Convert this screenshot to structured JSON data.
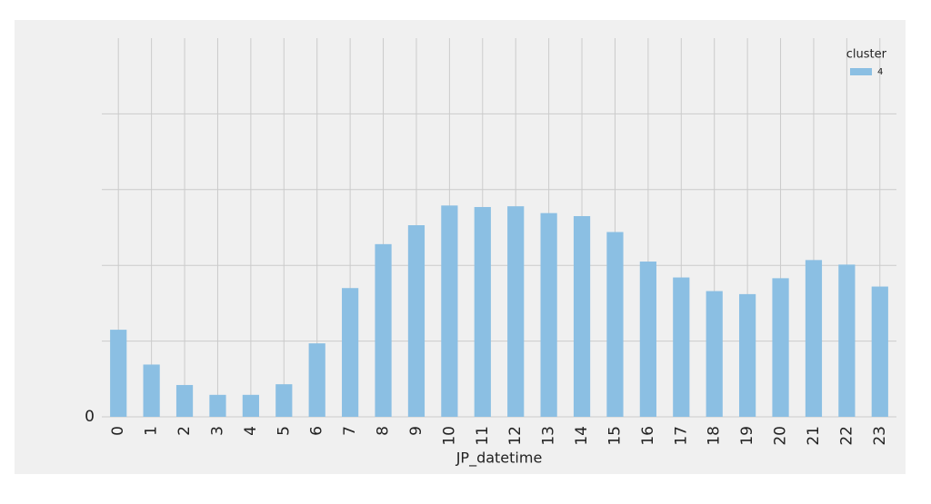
{
  "chart_data": {
    "type": "bar",
    "x_label": "JP_datetime",
    "categories": [
      "0",
      "1",
      "2",
      "3",
      "4",
      "5",
      "6",
      "7",
      "8",
      "9",
      "10",
      "11",
      "12",
      "13",
      "14",
      "15",
      "16",
      "17",
      "18",
      "19",
      "20",
      "21",
      "22",
      "23"
    ],
    "legend_title": "cluster",
    "legend": "upper right",
    "series": [
      {
        "name": "4",
        "color": "#8bbfe3",
        "values": [
          1.15,
          0.69,
          0.42,
          0.29,
          0.29,
          0.43,
          0.97,
          1.7,
          2.28,
          2.53,
          2.79,
          2.77,
          2.78,
          2.69,
          2.65,
          2.44,
          2.05,
          1.84,
          1.66,
          1.62,
          1.83,
          2.07,
          2.01,
          1.72
        ]
      }
    ],
    "ylim": [
      0,
      5
    ],
    "yticks": [
      0,
      {
        "value": 1,
        "label": null
      },
      {
        "value": 2,
        "label": null
      },
      {
        "value": 3,
        "label": null
      },
      {
        "value": 4,
        "label": null
      }
    ],
    "grid": true
  }
}
